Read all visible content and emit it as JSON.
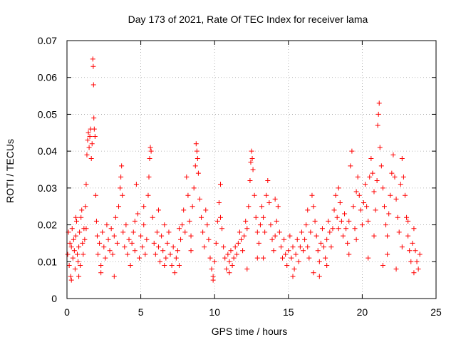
{
  "chart_data": {
    "type": "scatter",
    "title": "Day 173 of 2021, Rate Of TEC Index for receiver lama",
    "xlabel": "GPS time / hours",
    "ylabel": "ROTI / TECUs",
    "xlim": [
      0,
      25
    ],
    "ylim": [
      0,
      0.07
    ],
    "xticks": [
      "0",
      "5",
      "10",
      "15",
      "20",
      "25"
    ],
    "yticks": [
      "0",
      "0.01",
      "0.02",
      "0.03",
      "0.04",
      "0.05",
      "0.06",
      "0.07"
    ],
    "grid": true,
    "marker": "+",
    "color": "#ff0000",
    "series": [
      {
        "points": [
          [
            0.05,
            0.012
          ],
          [
            0.1,
            0.018
          ],
          [
            0.15,
            0.009
          ],
          [
            0.2,
            0.015
          ],
          [
            0.25,
            0.006
          ],
          [
            0.3,
            0.014
          ],
          [
            0.35,
            0.019
          ],
          [
            0.4,
            0.011
          ],
          [
            0.45,
            0.016
          ],
          [
            0.5,
            0.013
          ],
          [
            0.55,
            0.008
          ],
          [
            0.6,
            0.017
          ],
          [
            0.65,
            0.021
          ],
          [
            0.7,
            0.012
          ],
          [
            0.75,
            0.01
          ],
          [
            0.8,
            0.014
          ],
          [
            0.85,
            0.018
          ],
          [
            0.9,
            0.009
          ],
          [
            0.95,
            0.022
          ],
          [
            1.0,
            0.024
          ],
          [
            1.05,
            0.015
          ],
          [
            1.1,
            0.012
          ],
          [
            1.15,
            0.019
          ],
          [
            1.2,
            0.016
          ],
          [
            1.25,
            0.025
          ],
          [
            1.3,
            0.031
          ],
          [
            1.35,
            0.039
          ],
          [
            1.4,
            0.043
          ],
          [
            1.45,
            0.045
          ],
          [
            1.5,
            0.041
          ],
          [
            1.55,
            0.044
          ],
          [
            1.6,
            0.046
          ],
          [
            1.65,
            0.038
          ],
          [
            1.7,
            0.042
          ],
          [
            1.75,
            0.065
          ],
          [
            1.78,
            0.063
          ],
          [
            1.8,
            0.058
          ],
          [
            1.82,
            0.049
          ],
          [
            1.85,
            0.046
          ],
          [
            1.9,
            0.044
          ],
          [
            1.95,
            0.028
          ],
          [
            2.0,
            0.021
          ],
          [
            2.05,
            0.017
          ],
          [
            2.1,
            0.012
          ],
          [
            2.2,
            0.015
          ],
          [
            2.3,
            0.009
          ],
          [
            2.4,
            0.018
          ],
          [
            2.5,
            0.014
          ],
          [
            2.6,
            0.011
          ],
          [
            2.7,
            0.02
          ],
          [
            2.8,
            0.016
          ],
          [
            2.9,
            0.013
          ],
          [
            3.0,
            0.019
          ],
          [
            3.1,
            0.012
          ],
          [
            3.2,
            0.017
          ],
          [
            3.3,
            0.022
          ],
          [
            3.4,
            0.015
          ],
          [
            3.5,
            0.025
          ],
          [
            3.6,
            0.03
          ],
          [
            3.65,
            0.033
          ],
          [
            3.7,
            0.036
          ],
          [
            3.75,
            0.028
          ],
          [
            3.8,
            0.018
          ],
          [
            3.9,
            0.014
          ],
          [
            4.0,
            0.02
          ],
          [
            4.1,
            0.012
          ],
          [
            4.2,
            0.016
          ],
          [
            4.3,
            0.009
          ],
          [
            4.4,
            0.015
          ],
          [
            4.5,
            0.018
          ],
          [
            4.6,
            0.013
          ],
          [
            4.7,
            0.031
          ],
          [
            4.8,
            0.023
          ],
          [
            4.9,
            0.011
          ],
          [
            5.0,
            0.017
          ],
          [
            5.1,
            0.014
          ],
          [
            5.2,
            0.02
          ],
          [
            5.3,
            0.012
          ],
          [
            5.4,
            0.016
          ],
          [
            5.5,
            0.028
          ],
          [
            5.55,
            0.033
          ],
          [
            5.6,
            0.038
          ],
          [
            5.65,
            0.041
          ],
          [
            5.7,
            0.04
          ],
          [
            5.8,
            0.022
          ],
          [
            5.9,
            0.015
          ],
          [
            6.0,
            0.012
          ],
          [
            6.1,
            0.018
          ],
          [
            6.2,
            0.014
          ],
          [
            6.3,
            0.01
          ],
          [
            6.4,
            0.017
          ],
          [
            6.5,
            0.013
          ],
          [
            6.6,
            0.02
          ],
          [
            6.7,
            0.011
          ],
          [
            6.8,
            0.015
          ],
          [
            6.9,
            0.018
          ],
          [
            7.0,
            0.012
          ],
          [
            7.1,
            0.009
          ],
          [
            7.2,
            0.014
          ],
          [
            7.3,
            0.007
          ],
          [
            7.4,
            0.011
          ],
          [
            7.5,
            0.013
          ],
          [
            7.6,
            0.009
          ],
          [
            7.7,
            0.016
          ],
          [
            7.8,
            0.02
          ],
          [
            7.9,
            0.024
          ],
          [
            8.0,
            0.018
          ],
          [
            8.1,
            0.033
          ],
          [
            8.2,
            0.028
          ],
          [
            8.3,
            0.021
          ],
          [
            8.4,
            0.017
          ],
          [
            8.5,
            0.025
          ],
          [
            8.6,
            0.03
          ],
          [
            8.7,
            0.036
          ],
          [
            8.75,
            0.042
          ],
          [
            8.8,
            0.04
          ],
          [
            8.85,
            0.038
          ],
          [
            8.9,
            0.034
          ],
          [
            9.0,
            0.027
          ],
          [
            9.1,
            0.022
          ],
          [
            9.2,
            0.018
          ],
          [
            9.3,
            0.014
          ],
          [
            9.4,
            0.024
          ],
          [
            9.5,
            0.02
          ],
          [
            9.6,
            0.016
          ],
          [
            9.7,
            0.011
          ],
          [
            9.8,
            0.008
          ],
          [
            9.9,
            0.006
          ],
          [
            10.0,
            0.01
          ],
          [
            10.1,
            0.015
          ],
          [
            10.2,
            0.021
          ],
          [
            10.3,
            0.026
          ],
          [
            10.4,
            0.031
          ],
          [
            10.5,
            0.019
          ],
          [
            10.6,
            0.014
          ],
          [
            10.7,
            0.011
          ],
          [
            10.8,
            0.008
          ],
          [
            10.9,
            0.012
          ],
          [
            11.0,
            0.01
          ],
          [
            11.1,
            0.013
          ],
          [
            11.2,
            0.009
          ],
          [
            11.3,
            0.011
          ],
          [
            11.4,
            0.014
          ],
          [
            11.5,
            0.012
          ],
          [
            11.6,
            0.015
          ],
          [
            11.7,
            0.018
          ],
          [
            11.8,
            0.016
          ],
          [
            11.9,
            0.013
          ],
          [
            12.0,
            0.017
          ],
          [
            12.1,
            0.021
          ],
          [
            12.2,
            0.019
          ],
          [
            12.3,
            0.025
          ],
          [
            12.4,
            0.032
          ],
          [
            12.45,
            0.037
          ],
          [
            12.5,
            0.04
          ],
          [
            12.55,
            0.038
          ],
          [
            12.6,
            0.035
          ],
          [
            12.7,
            0.028
          ],
          [
            12.8,
            0.022
          ],
          [
            12.9,
            0.018
          ],
          [
            13.0,
            0.015
          ],
          [
            13.1,
            0.02
          ],
          [
            13.2,
            0.025
          ],
          [
            13.3,
            0.022
          ],
          [
            13.4,
            0.018
          ],
          [
            13.5,
            0.028
          ],
          [
            13.6,
            0.032
          ],
          [
            13.7,
            0.026
          ],
          [
            13.8,
            0.02
          ],
          [
            13.9,
            0.016
          ],
          [
            14.0,
            0.013
          ],
          [
            14.1,
            0.017
          ],
          [
            14.2,
            0.021
          ],
          [
            14.3,
            0.025
          ],
          [
            14.4,
            0.018
          ],
          [
            14.5,
            0.014
          ],
          [
            14.6,
            0.011
          ],
          [
            14.7,
            0.016
          ],
          [
            14.8,
            0.012
          ],
          [
            14.9,
            0.009
          ],
          [
            15.0,
            0.013
          ],
          [
            15.1,
            0.017
          ],
          [
            15.2,
            0.011
          ],
          [
            15.3,
            0.014
          ],
          [
            15.4,
            0.008
          ],
          [
            15.5,
            0.012
          ],
          [
            15.6,
            0.016
          ],
          [
            15.7,
            0.01
          ],
          [
            15.8,
            0.014
          ],
          [
            15.9,
            0.018
          ],
          [
            16.0,
            0.013
          ],
          [
            16.1,
            0.016
          ],
          [
            16.2,
            0.02
          ],
          [
            16.3,
            0.014
          ],
          [
            16.4,
            0.011
          ],
          [
            16.5,
            0.018
          ],
          [
            16.6,
            0.028
          ],
          [
            16.7,
            0.025
          ],
          [
            16.8,
            0.021
          ],
          [
            16.9,
            0.017
          ],
          [
            17.0,
            0.013
          ],
          [
            17.1,
            0.01
          ],
          [
            17.2,
            0.015
          ],
          [
            17.3,
            0.019
          ],
          [
            17.4,
            0.014
          ],
          [
            17.5,
            0.011
          ],
          [
            17.6,
            0.016
          ],
          [
            17.7,
            0.021
          ],
          [
            17.8,
            0.018
          ],
          [
            17.9,
            0.014
          ],
          [
            18.0,
            0.019
          ],
          [
            18.1,
            0.024
          ],
          [
            18.2,
            0.028
          ],
          [
            18.3,
            0.022
          ],
          [
            18.4,
            0.03
          ],
          [
            18.5,
            0.026
          ],
          [
            18.6,
            0.021
          ],
          [
            18.7,
            0.017
          ],
          [
            18.8,
            0.023
          ],
          [
            18.9,
            0.019
          ],
          [
            19.0,
            0.015
          ],
          [
            19.1,
            0.021
          ],
          [
            19.2,
            0.036
          ],
          [
            19.3,
            0.04
          ],
          [
            19.4,
            0.025
          ],
          [
            19.5,
            0.019
          ],
          [
            19.6,
            0.029
          ],
          [
            19.7,
            0.033
          ],
          [
            19.8,
            0.028
          ],
          [
            19.9,
            0.024
          ],
          [
            20.0,
            0.02
          ],
          [
            20.1,
            0.026
          ],
          [
            20.2,
            0.031
          ],
          [
            20.3,
            0.025
          ],
          [
            20.4,
            0.021
          ],
          [
            20.5,
            0.033
          ],
          [
            20.6,
            0.038
          ],
          [
            20.7,
            0.034
          ],
          [
            20.8,
            0.029
          ],
          [
            20.9,
            0.024
          ],
          [
            21.0,
            0.032
          ],
          [
            21.05,
            0.047
          ],
          [
            21.1,
            0.05
          ],
          [
            21.15,
            0.053
          ],
          [
            21.2,
            0.041
          ],
          [
            21.3,
            0.036
          ],
          [
            21.4,
            0.03
          ],
          [
            21.5,
            0.025
          ],
          [
            21.6,
            0.02
          ],
          [
            21.7,
            0.017
          ],
          [
            21.8,
            0.023
          ],
          [
            21.9,
            0.028
          ],
          [
            22.0,
            0.034
          ],
          [
            22.1,
            0.039
          ],
          [
            22.2,
            0.033
          ],
          [
            22.3,
            0.027
          ],
          [
            22.4,
            0.022
          ],
          [
            22.5,
            0.018
          ],
          [
            22.6,
            0.031
          ],
          [
            22.7,
            0.038
          ],
          [
            22.8,
            0.033
          ],
          [
            22.9,
            0.028
          ],
          [
            23.0,
            0.022
          ],
          [
            23.1,
            0.017
          ],
          [
            23.2,
            0.013
          ],
          [
            23.3,
            0.01
          ],
          [
            23.4,
            0.015
          ],
          [
            23.5,
            0.019
          ],
          [
            23.6,
            0.013
          ],
          [
            23.7,
            0.01
          ],
          [
            23.8,
            0.008
          ],
          [
            23.9,
            0.012
          ],
          [
            0.3,
            0.005
          ],
          [
            0.8,
            0.006
          ],
          [
            2.3,
            0.007
          ],
          [
            3.2,
            0.006
          ],
          [
            6.6,
            0.009
          ],
          [
            9.9,
            0.005
          ],
          [
            11.0,
            0.007
          ],
          [
            12.2,
            0.008
          ],
          [
            13.3,
            0.011
          ],
          [
            15.3,
            0.006
          ],
          [
            16.7,
            0.007
          ],
          [
            17.1,
            0.006
          ],
          [
            19.1,
            0.012
          ],
          [
            20.4,
            0.011
          ],
          [
            21.4,
            0.009
          ],
          [
            22.3,
            0.008
          ],
          [
            23.5,
            0.007
          ],
          [
            1.3,
            0.019
          ],
          [
            4.6,
            0.021
          ],
          [
            6.2,
            0.024
          ],
          [
            7.6,
            0.019
          ],
          [
            10.4,
            0.022
          ],
          [
            14.1,
            0.027
          ],
          [
            16.3,
            0.024
          ],
          [
            18.4,
            0.019
          ],
          [
            20.8,
            0.017
          ],
          [
            22.7,
            0.014
          ],
          [
            0.6,
            0.022
          ],
          [
            5.2,
            0.025
          ],
          [
            8.4,
            0.013
          ],
          [
            12.9,
            0.011
          ],
          [
            17.6,
            0.009
          ],
          [
            19.6,
            0.016
          ],
          [
            21.7,
            0.012
          ],
          [
            23.1,
            0.021
          ]
        ]
      }
    ]
  }
}
